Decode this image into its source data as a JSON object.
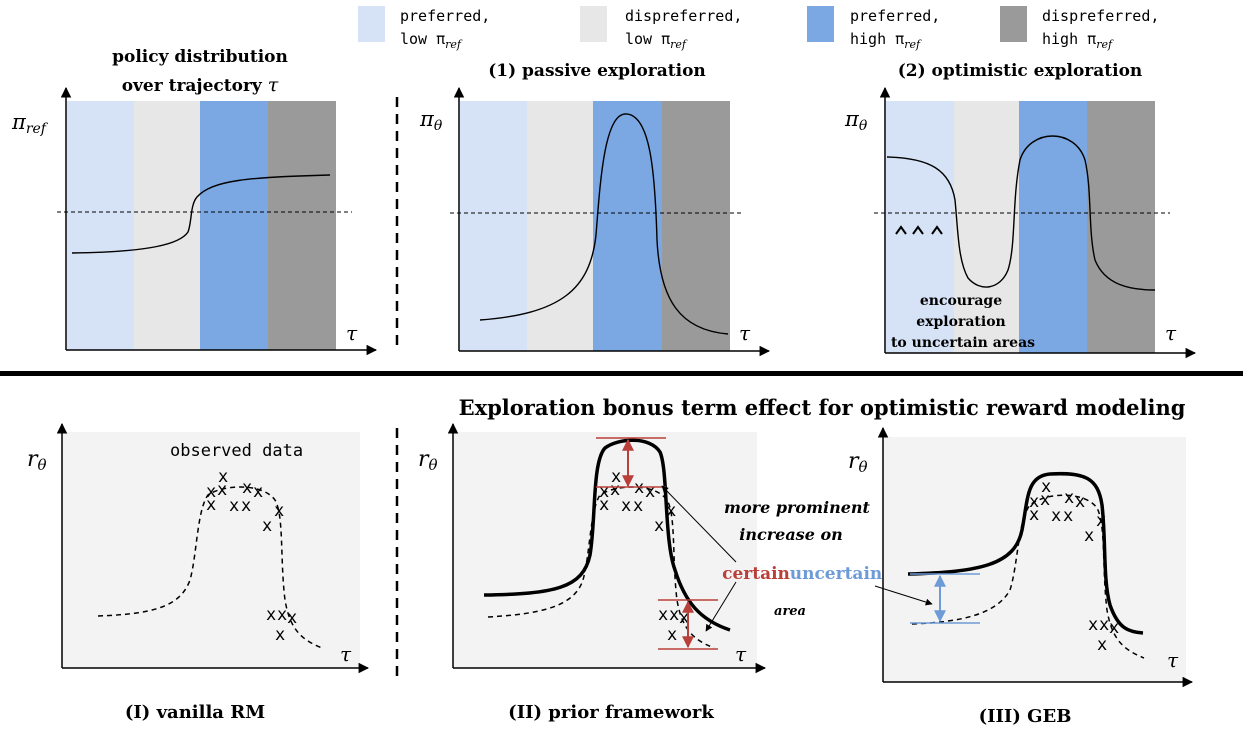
{
  "legend": [
    {
      "line1": "preferred,",
      "line2": "low π",
      "sub": "ref",
      "color": "#d6e3f6"
    },
    {
      "line1": "dispreferred,",
      "line2": "low π",
      "sub": "ref",
      "color": "#e7e7e7"
    },
    {
      "line1": "preferred,",
      "line2": "high π",
      "sub": "ref",
      "color": "#7ba7e2"
    },
    {
      "line1": "dispreferred,",
      "line2": "high π",
      "sub": "ref",
      "color": "#9a9a9a"
    }
  ],
  "top_panels": {
    "panel_a": {
      "title_line1": "policy distribution",
      "title_line2": "over trajectory",
      "title_sym": "τ",
      "ylabel": "π",
      "ylabel_sub": "ref",
      "xlabel": "τ"
    },
    "panel_b": {
      "title": "(1) passive exploration",
      "ylabel": "π",
      "ylabel_sub": "θ",
      "xlabel": "τ"
    },
    "panel_c": {
      "title": "(2) optimistic exploration",
      "ylabel": "π",
      "ylabel_sub": "θ",
      "xlabel": "τ",
      "note_line1": "encourage",
      "note_line2": "exploration",
      "note_line3": "to uncertain areas"
    }
  },
  "bottom_title": "Exploration bonus term effect for optimistic reward modeling",
  "bottom_panels": {
    "panel_1": {
      "caption": "(I) vanilla RM",
      "ylabel": "r",
      "ylabel_sub": "θ",
      "xlabel": "τ",
      "data_label": "observed data"
    },
    "panel_2": {
      "caption": "(II) prior framework",
      "ylabel": "r",
      "ylabel_sub": "θ",
      "xlabel": "τ",
      "note_line1": "more prominent",
      "note_line2": "increase on",
      "certain": "certain",
      "uncertain": "uncertain",
      "area": "area"
    },
    "panel_3": {
      "caption": "(III) GEB",
      "ylabel": "r",
      "ylabel_sub": "θ",
      "xlabel": "τ"
    }
  },
  "marker": "x",
  "colors": {
    "certain": "#b9403a",
    "uncertain": "#6c9bd8",
    "panel_bg": "#f3f3f3"
  }
}
